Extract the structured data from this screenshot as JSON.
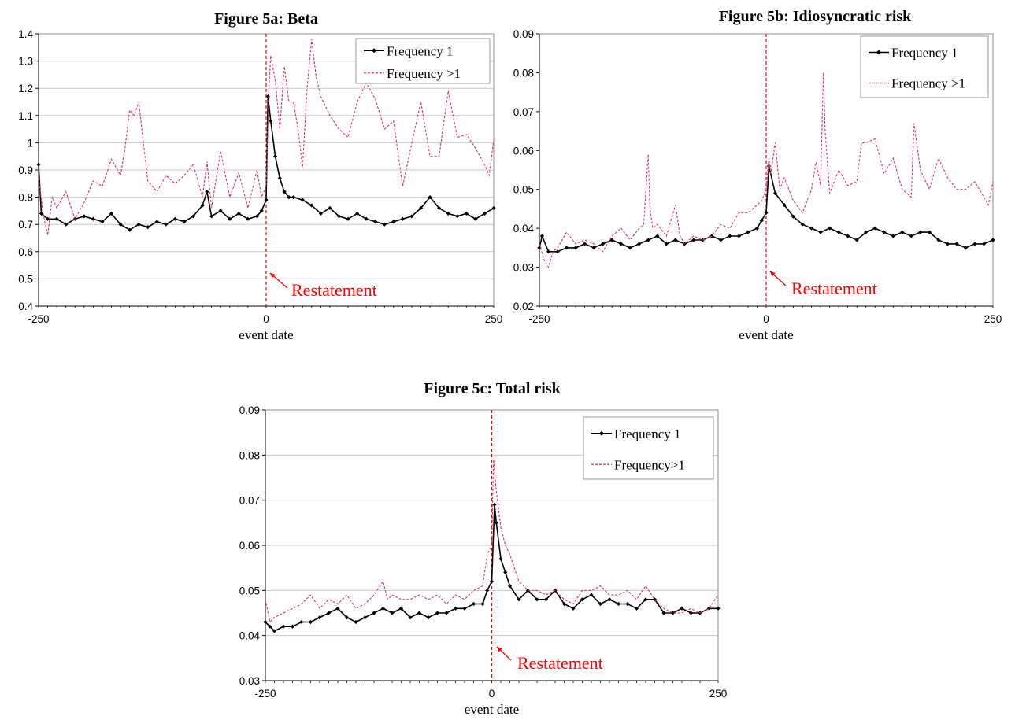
{
  "colors": {
    "frequency_1": "#000000",
    "frequency_gt1": "#e0306a",
    "event_line": "#ff0000",
    "annotation": "#ff0000",
    "gridline": "#c8c8c8"
  },
  "chart_data": [
    {
      "id": "a",
      "type": "line",
      "title": "Figure 5a: Beta",
      "xlabel": "event date",
      "ylabel": "",
      "xlim": [
        -250,
        250
      ],
      "ylim": [
        0.4,
        1.4
      ],
      "y_ticks": [
        "0.4",
        "0.5",
        "0.6",
        "0.7",
        "0.8",
        "0.9",
        "1",
        "1.1",
        "1.2",
        "1.3",
        "1.4"
      ],
      "x_ticks": [
        "-250",
        "0",
        "250"
      ],
      "grid": true,
      "legend_position": "top-right",
      "annotation": {
        "text": "Restatement",
        "x": 0
      },
      "series": [
        {
          "name": "Frequency 1",
          "style": "solid-diamond-markers",
          "x": [
            -250,
            -247,
            -240,
            -230,
            -220,
            -210,
            -200,
            -190,
            -180,
            -170,
            -160,
            -150,
            -140,
            -130,
            -120,
            -110,
            -100,
            -90,
            -80,
            -70,
            -65,
            -60,
            -50,
            -40,
            -30,
            -20,
            -10,
            -5,
            0,
            2,
            5,
            10,
            15,
            20,
            25,
            30,
            40,
            50,
            60,
            70,
            80,
            90,
            100,
            110,
            120,
            130,
            140,
            150,
            160,
            170,
            180,
            190,
            200,
            210,
            220,
            230,
            240,
            250
          ],
          "y": [
            0.92,
            0.74,
            0.72,
            0.72,
            0.7,
            0.72,
            0.73,
            0.72,
            0.71,
            0.74,
            0.7,
            0.68,
            0.7,
            0.69,
            0.71,
            0.7,
            0.72,
            0.71,
            0.73,
            0.77,
            0.82,
            0.73,
            0.75,
            0.72,
            0.74,
            0.72,
            0.73,
            0.75,
            0.79,
            1.17,
            1.08,
            0.95,
            0.87,
            0.82,
            0.8,
            0.8,
            0.79,
            0.77,
            0.74,
            0.76,
            0.73,
            0.72,
            0.74,
            0.72,
            0.71,
            0.7,
            0.71,
            0.72,
            0.73,
            0.76,
            0.8,
            0.76,
            0.74,
            0.73,
            0.74,
            0.72,
            0.74,
            0.76
          ]
        },
        {
          "name": "Frequency >1",
          "style": "dashed",
          "x": [
            -250,
            -245,
            -240,
            -235,
            -230,
            -220,
            -210,
            -200,
            -190,
            -180,
            -170,
            -160,
            -155,
            -150,
            -145,
            -140,
            -130,
            -120,
            -110,
            -100,
            -90,
            -80,
            -70,
            -65,
            -60,
            -50,
            -40,
            -30,
            -20,
            -10,
            -5,
            0,
            3,
            5,
            10,
            15,
            20,
            25,
            30,
            35,
            40,
            45,
            50,
            55,
            60,
            70,
            80,
            90,
            100,
            110,
            120,
            130,
            140,
            150,
            160,
            170,
            180,
            190,
            200,
            210,
            220,
            230,
            240,
            245,
            250
          ],
          "y": [
            0.87,
            0.74,
            0.66,
            0.8,
            0.76,
            0.82,
            0.72,
            0.78,
            0.86,
            0.84,
            0.94,
            0.88,
            0.98,
            1.12,
            1.1,
            1.15,
            0.86,
            0.82,
            0.88,
            0.85,
            0.88,
            0.92,
            0.8,
            0.93,
            0.76,
            0.97,
            0.8,
            0.89,
            0.76,
            0.9,
            0.8,
            0.84,
            1.2,
            1.32,
            1.23,
            1.05,
            1.28,
            1.15,
            1.15,
            1.05,
            0.91,
            1.2,
            1.38,
            1.24,
            1.17,
            1.1,
            1.05,
            1.02,
            1.15,
            1.22,
            1.16,
            1.05,
            1.08,
            0.84,
            1.0,
            1.15,
            0.95,
            0.95,
            1.19,
            1.02,
            1.03,
            0.98,
            0.92,
            0.88,
            1.01
          ]
        }
      ]
    },
    {
      "id": "b",
      "type": "line",
      "title": "Figure 5b: Idiosyncratic risk",
      "xlabel": "event date",
      "ylabel": "",
      "xlim": [
        -250,
        250
      ],
      "ylim": [
        0.02,
        0.09
      ],
      "y_ticks": [
        "0.02",
        "0.03",
        "0.04",
        "0.05",
        "0.06",
        "0.07",
        "0.08",
        "0.09"
      ],
      "x_ticks": [
        "-250",
        "0",
        "250"
      ],
      "grid": false,
      "legend_position": "top-right",
      "annotation": {
        "text": "Restatement",
        "x": 0
      },
      "series": [
        {
          "name": "Frequency 1",
          "style": "solid-diamond-markers",
          "x": [
            -250,
            -247,
            -240,
            -230,
            -220,
            -210,
            -200,
            -190,
            -180,
            -170,
            -160,
            -150,
            -140,
            -130,
            -120,
            -110,
            -100,
            -90,
            -80,
            -70,
            -60,
            -50,
            -40,
            -30,
            -20,
            -10,
            -5,
            0,
            3,
            10,
            20,
            30,
            40,
            50,
            60,
            70,
            80,
            90,
            100,
            110,
            120,
            130,
            140,
            150,
            160,
            170,
            180,
            190,
            200,
            210,
            220,
            230,
            240,
            250
          ],
          "y": [
            0.035,
            0.038,
            0.034,
            0.034,
            0.035,
            0.035,
            0.036,
            0.035,
            0.036,
            0.037,
            0.036,
            0.035,
            0.036,
            0.037,
            0.038,
            0.036,
            0.037,
            0.036,
            0.037,
            0.037,
            0.038,
            0.037,
            0.038,
            0.038,
            0.039,
            0.04,
            0.042,
            0.044,
            0.056,
            0.049,
            0.046,
            0.043,
            0.041,
            0.04,
            0.039,
            0.04,
            0.039,
            0.038,
            0.037,
            0.039,
            0.04,
            0.039,
            0.038,
            0.039,
            0.038,
            0.039,
            0.039,
            0.037,
            0.036,
            0.036,
            0.035,
            0.036,
            0.036,
            0.037
          ]
        },
        {
          "name": "Frequency >1",
          "style": "dashed",
          "x": [
            -250,
            -245,
            -240,
            -235,
            -230,
            -220,
            -210,
            -200,
            -190,
            -180,
            -170,
            -160,
            -150,
            -140,
            -135,
            -130,
            -128,
            -125,
            -120,
            -110,
            -100,
            -95,
            -90,
            -80,
            -70,
            -60,
            -50,
            -40,
            -30,
            -20,
            -10,
            -5,
            0,
            3,
            5,
            10,
            15,
            20,
            30,
            40,
            50,
            55,
            60,
            63,
            65,
            70,
            80,
            90,
            100,
            105,
            110,
            120,
            130,
            140,
            150,
            160,
            163,
            170,
            180,
            190,
            200,
            210,
            220,
            230,
            240,
            245,
            250
          ],
          "y": [
            0.036,
            0.032,
            0.03,
            0.034,
            0.035,
            0.039,
            0.036,
            0.037,
            0.036,
            0.034,
            0.038,
            0.04,
            0.037,
            0.04,
            0.041,
            0.059,
            0.045,
            0.04,
            0.041,
            0.038,
            0.046,
            0.038,
            0.036,
            0.038,
            0.037,
            0.038,
            0.041,
            0.04,
            0.044,
            0.044,
            0.046,
            0.047,
            0.05,
            0.058,
            0.054,
            0.062,
            0.05,
            0.053,
            0.047,
            0.044,
            0.05,
            0.057,
            0.051,
            0.08,
            0.065,
            0.049,
            0.055,
            0.051,
            0.052,
            0.062,
            0.062,
            0.063,
            0.054,
            0.058,
            0.05,
            0.048,
            0.067,
            0.055,
            0.05,
            0.058,
            0.053,
            0.05,
            0.05,
            0.052,
            0.048,
            0.046,
            0.052
          ]
        }
      ]
    },
    {
      "id": "c",
      "type": "line",
      "title": "Figure 5c: Total risk",
      "xlabel": "event date",
      "ylabel": "",
      "xlim": [
        -250,
        250
      ],
      "ylim": [
        0.03,
        0.09
      ],
      "y_ticks": [
        "0.03",
        "0.04",
        "0.05",
        "0.06",
        "0.07",
        "0.08",
        "0.09"
      ],
      "x_ticks": [
        "-250",
        "0",
        "250"
      ],
      "grid": true,
      "legend_position": "top-right",
      "annotation": {
        "text": "Restatement",
        "x": 0
      },
      "series": [
        {
          "name": "Frequency 1",
          "style": "solid-diamond-markers",
          "x": [
            -250,
            -245,
            -240,
            -230,
            -220,
            -210,
            -200,
            -190,
            -180,
            -170,
            -160,
            -150,
            -140,
            -130,
            -120,
            -110,
            -100,
            -90,
            -80,
            -70,
            -60,
            -50,
            -40,
            -30,
            -20,
            -10,
            -5,
            0,
            3,
            5,
            10,
            15,
            20,
            30,
            40,
            50,
            60,
            70,
            80,
            90,
            100,
            110,
            120,
            130,
            140,
            150,
            160,
            170,
            180,
            190,
            200,
            210,
            220,
            230,
            240,
            250
          ],
          "y": [
            0.043,
            0.042,
            0.041,
            0.042,
            0.042,
            0.043,
            0.043,
            0.044,
            0.045,
            0.046,
            0.044,
            0.043,
            0.044,
            0.045,
            0.046,
            0.045,
            0.046,
            0.044,
            0.045,
            0.044,
            0.045,
            0.045,
            0.046,
            0.046,
            0.047,
            0.047,
            0.05,
            0.052,
            0.069,
            0.065,
            0.057,
            0.054,
            0.051,
            0.048,
            0.05,
            0.048,
            0.048,
            0.05,
            0.047,
            0.046,
            0.048,
            0.049,
            0.047,
            0.048,
            0.047,
            0.047,
            0.046,
            0.048,
            0.048,
            0.045,
            0.045,
            0.046,
            0.045,
            0.045,
            0.046,
            0.046
          ]
        },
        {
          "name": "Frequency>1",
          "style": "dashed",
          "x": [
            -250,
            -245,
            -240,
            -230,
            -220,
            -210,
            -200,
            -190,
            -180,
            -170,
            -160,
            -150,
            -140,
            -130,
            -120,
            -115,
            -110,
            -100,
            -90,
            -80,
            -70,
            -60,
            -50,
            -40,
            -30,
            -20,
            -10,
            -5,
            0,
            2,
            5,
            10,
            15,
            20,
            30,
            40,
            50,
            60,
            70,
            80,
            90,
            100,
            110,
            120,
            130,
            140,
            150,
            160,
            170,
            180,
            190,
            200,
            210,
            220,
            230,
            240,
            250
          ],
          "y": [
            0.048,
            0.043,
            0.044,
            0.045,
            0.046,
            0.047,
            0.049,
            0.046,
            0.048,
            0.047,
            0.049,
            0.046,
            0.047,
            0.049,
            0.052,
            0.048,
            0.049,
            0.048,
            0.048,
            0.049,
            0.048,
            0.049,
            0.047,
            0.049,
            0.048,
            0.05,
            0.051,
            0.058,
            0.06,
            0.079,
            0.072,
            0.064,
            0.06,
            0.058,
            0.052,
            0.05,
            0.05,
            0.049,
            0.05,
            0.048,
            0.047,
            0.05,
            0.05,
            0.051,
            0.049,
            0.049,
            0.05,
            0.048,
            0.051,
            0.048,
            0.046,
            0.045,
            0.045,
            0.046,
            0.045,
            0.046,
            0.049
          ]
        }
      ]
    }
  ]
}
